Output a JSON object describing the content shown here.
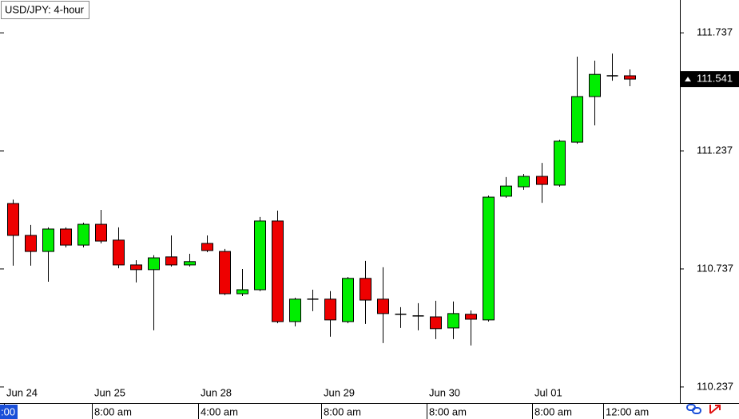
{
  "chart_data": {
    "type": "candlestick",
    "title": "USD/JPY: 4-hour",
    "categories": [
      "Jun 24",
      null,
      null,
      null,
      null,
      "Jun 25",
      null,
      null,
      null,
      null,
      null,
      "Jun 28",
      null,
      null,
      null,
      null,
      null,
      null,
      "Jun 29",
      null,
      null,
      null,
      null,
      null,
      "Jun 30",
      null,
      null,
      null,
      null,
      null,
      "Jul 01",
      null,
      null,
      null,
      null,
      null
    ],
    "time_labels": [
      ":00",
      null,
      null,
      null,
      null,
      "8:00 am",
      null,
      null,
      null,
      null,
      null,
      "4:00 am",
      null,
      null,
      null,
      null,
      null,
      null,
      "8:00 am",
      null,
      null,
      null,
      null,
      null,
      "8:00 am",
      null,
      null,
      null,
      null,
      null,
      "8:00 am",
      null,
      null,
      null,
      "12:00 am",
      null
    ],
    "series": [
      {
        "open": [
          111.014,
          110.879,
          110.811,
          110.906,
          110.838,
          110.926,
          110.859,
          110.754,
          110.734,
          110.788,
          110.754,
          110.845,
          110.811,
          110.632,
          110.649,
          110.94,
          110.514,
          110.609,
          110.609,
          110.514,
          110.697,
          110.609,
          110.545,
          110.538,
          110.534,
          110.487,
          110.545,
          110.521,
          111.045,
          111.085,
          111.129,
          111.092,
          111.274,
          111.467,
          111.555,
          111.555
        ],
        "high": [
          111.031,
          110.923,
          110.913,
          110.913,
          110.933,
          110.987,
          110.913,
          110.774,
          110.795,
          110.879,
          110.801,
          110.879,
          110.822,
          110.737,
          110.957,
          110.984,
          110.615,
          110.649,
          110.643,
          110.703,
          110.771,
          110.744,
          110.575,
          110.592,
          110.602,
          110.599,
          110.561,
          111.048,
          111.126,
          111.139,
          111.186,
          111.284,
          111.636,
          111.619,
          111.649,
          111.582
        ],
        "low": [
          110.751,
          110.751,
          110.683,
          110.828,
          110.828,
          110.845,
          110.74,
          110.68,
          110.477,
          110.747,
          110.747,
          110.808,
          110.626,
          110.622,
          110.643,
          110.507,
          110.494,
          110.558,
          110.45,
          110.507,
          110.504,
          110.423,
          110.487,
          110.477,
          110.44,
          110.44,
          110.413,
          110.514,
          111.038,
          111.072,
          111.017,
          111.085,
          111.267,
          111.345,
          111.534,
          111.511
        ],
        "close": [
          110.879,
          110.811,
          110.906,
          110.838,
          110.926,
          110.855,
          110.754,
          110.734,
          110.784,
          110.754,
          110.768,
          110.815,
          110.632,
          110.649,
          110.94,
          110.514,
          110.609,
          110.609,
          110.521,
          110.697,
          110.605,
          110.548,
          110.545,
          110.538,
          110.484,
          110.548,
          110.524,
          111.041,
          111.088,
          111.129,
          111.095,
          111.278,
          111.467,
          111.561,
          111.555,
          111.541
        ]
      }
    ],
    "up_color": "#00ee00",
    "down_color": "#ee0000",
    "wick_color": "#000000",
    "ylim": [
      110.169,
      111.876
    ],
    "yticks": [
      110.237,
      110.737,
      111.237,
      111.737
    ],
    "grid": false
  }
}
